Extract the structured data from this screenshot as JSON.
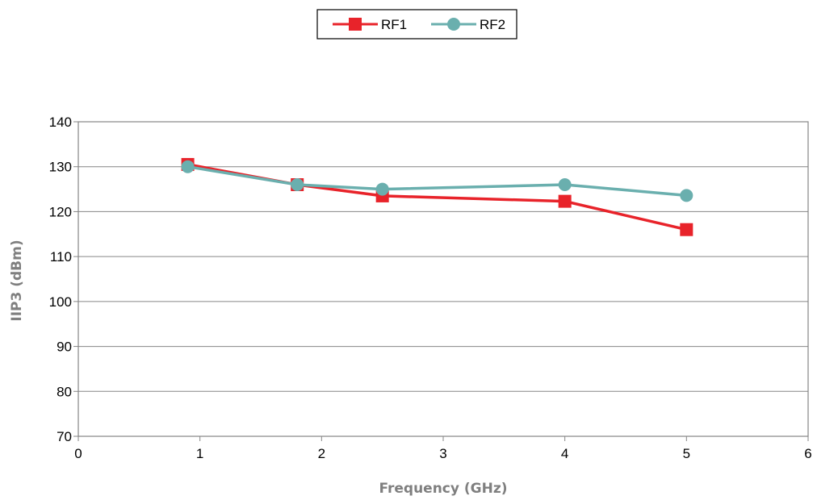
{
  "chart_data": {
    "type": "line",
    "title": "",
    "xlabel": "Frequency (GHz)",
    "ylabel": "IIP3 (dBm)",
    "xlim": [
      0,
      6
    ],
    "ylim": [
      70,
      140
    ],
    "xticks": [
      0,
      1,
      2,
      3,
      4,
      5,
      6
    ],
    "yticks": [
      70,
      80,
      90,
      100,
      110,
      120,
      130,
      140
    ],
    "grid": "horizontal",
    "legend": "top-center",
    "series": [
      {
        "name": "RF1",
        "color": "#e8232a",
        "marker": "square",
        "x": [
          0.9,
          1.8,
          2.5,
          4.0,
          5.0
        ],
        "y": [
          130.5,
          126.0,
          123.5,
          122.3,
          116.0
        ]
      },
      {
        "name": "RF2",
        "color": "#6aafae",
        "marker": "circle",
        "x": [
          0.9,
          1.8,
          2.5,
          4.0,
          5.0
        ],
        "y": [
          130.0,
          126.0,
          125.0,
          126.0,
          123.6
        ]
      }
    ]
  }
}
